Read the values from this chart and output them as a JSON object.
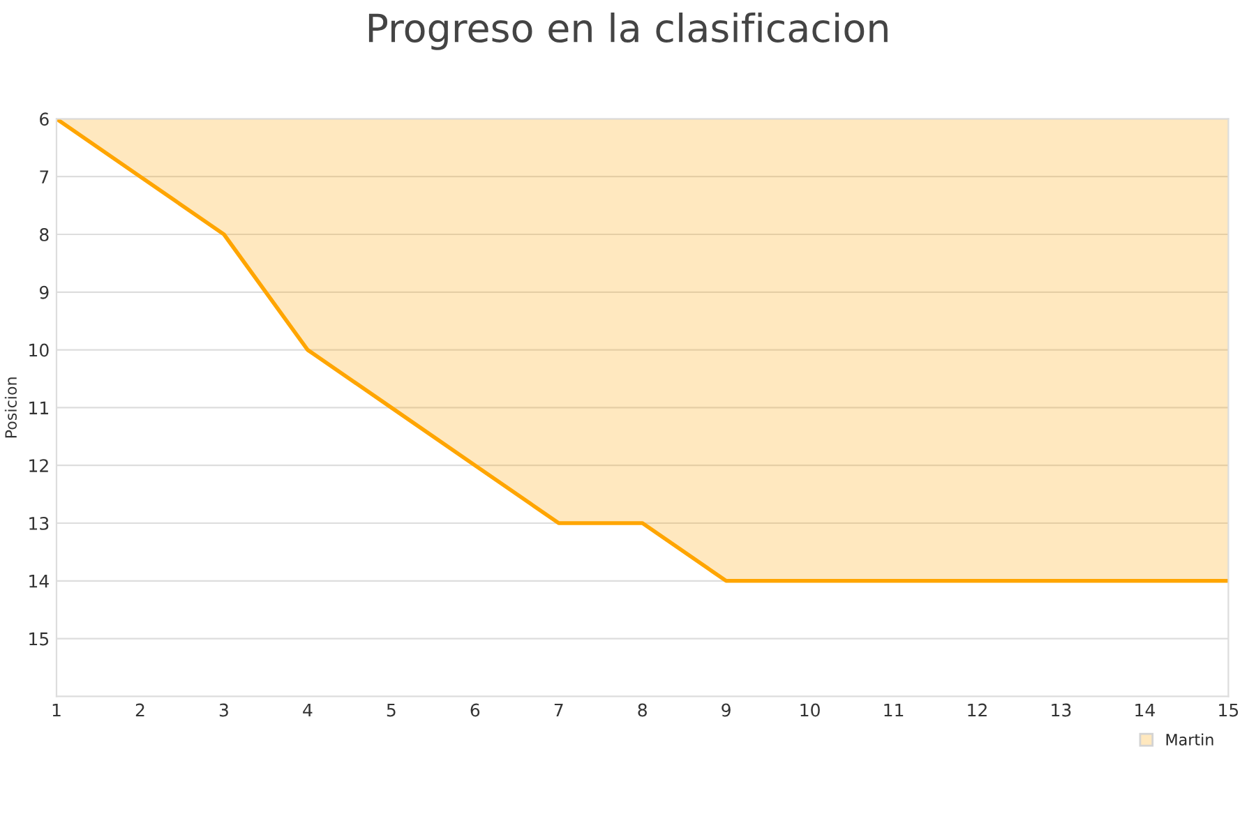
{
  "chart_data": {
    "type": "area",
    "title": "Progreso en la clasificacion",
    "ylabel": "Posicion",
    "x": [
      1,
      2,
      3,
      4,
      5,
      6,
      7,
      8,
      9,
      10,
      11,
      12,
      13,
      14,
      15
    ],
    "series": [
      {
        "name": "Martin",
        "color": "#ffa500",
        "values": [
          6,
          7,
          8,
          10,
          11,
          12,
          13,
          13,
          14,
          14,
          14,
          14,
          14,
          14,
          14
        ]
      }
    ],
    "xlim": [
      1,
      15
    ],
    "xticks": [
      1,
      2,
      3,
      4,
      5,
      6,
      7,
      8,
      9,
      10,
      11,
      12,
      13,
      14,
      15
    ],
    "ylim": [
      16,
      6
    ],
    "yticks": [
      6,
      7,
      8,
      9,
      10,
      11,
      12,
      13,
      14,
      15
    ],
    "grid": "y",
    "legend": "bottom right"
  }
}
